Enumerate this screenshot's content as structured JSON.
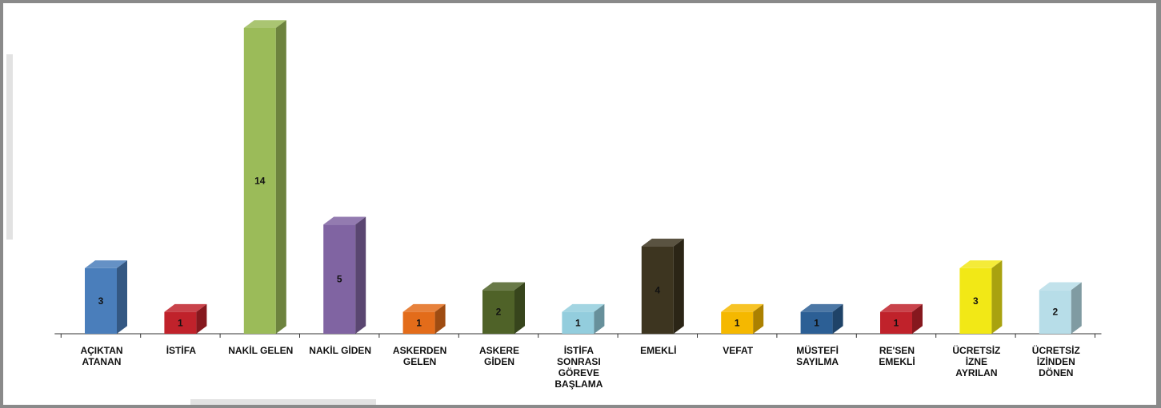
{
  "chart_data": {
    "type": "bar",
    "title": "",
    "xlabel": "",
    "ylabel": "",
    "ylim": [
      0,
      14
    ],
    "grid": false,
    "legend": "none",
    "style": "3d",
    "categories": [
      [
        "AÇIKTAN",
        "ATANAN"
      ],
      [
        "İSTİFA"
      ],
      [
        "NAKİL GELEN"
      ],
      [
        "NAKİL GİDEN"
      ],
      [
        "ASKERDEN",
        "GELEN"
      ],
      [
        "ASKERE",
        "GİDEN"
      ],
      [
        "İSTİFA",
        "SONRASI",
        "GÖREVE",
        "BAŞLAMA"
      ],
      [
        "EMEKLİ"
      ],
      [
        "VEFAT"
      ],
      [
        "MÜSTEFİ",
        "SAYILMA"
      ],
      [
        "RE'SEN",
        "EMEKLİ"
      ],
      [
        "ÜCRETSİZ",
        "İZNE",
        "AYRILAN"
      ],
      [
        "ÜCRETSİZ",
        "İZİNDEN",
        "DÖNEN"
      ]
    ],
    "values": [
      3,
      1,
      14,
      5,
      1,
      2,
      1,
      4,
      1,
      1,
      1,
      3,
      2
    ],
    "colors": [
      "#4a7ebb",
      "#c0222b",
      "#9bbb59",
      "#8064a2",
      "#e36c1a",
      "#4f6228",
      "#93cddd",
      "#3d3520",
      "#f5b800",
      "#2c5f95",
      "#c0222b",
      "#f2e816",
      "#b7dde8"
    ]
  }
}
